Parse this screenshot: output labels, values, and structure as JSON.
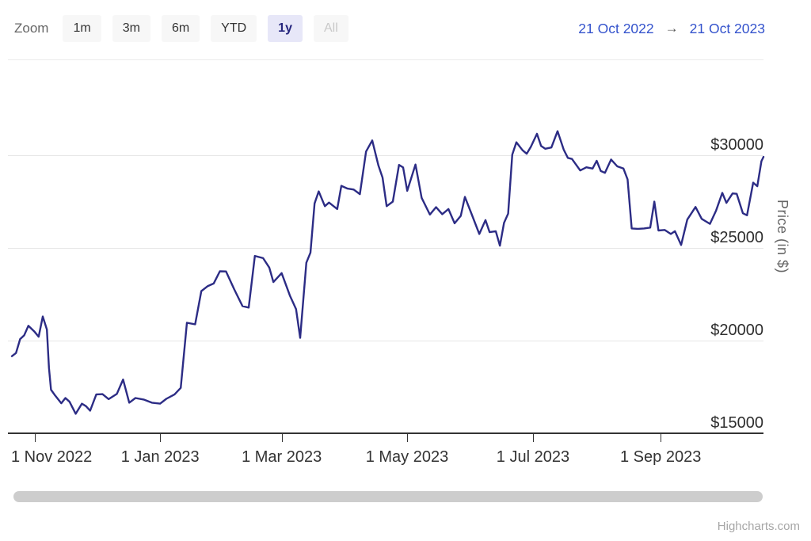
{
  "toolbar": {
    "zoom_label": "Zoom",
    "buttons": [
      {
        "label": "1m",
        "state": "normal"
      },
      {
        "label": "3m",
        "state": "normal"
      },
      {
        "label": "6m",
        "state": "normal"
      },
      {
        "label": "YTD",
        "state": "normal"
      },
      {
        "label": "1y",
        "state": "selected"
      },
      {
        "label": "All",
        "state": "disabled"
      }
    ],
    "range": {
      "from": "21 Oct 2022",
      "arrow": "→",
      "to": "21 Oct 2023"
    }
  },
  "credit": "Highcharts.com",
  "colors": {
    "line": "#2c2c85",
    "grid": "#e6e6e6",
    "top_border": "#ececec",
    "axis": "#333333",
    "selected_button_bg": "#e7e7f8",
    "button_bg": "#f7f7f7",
    "range_text": "#3352cc",
    "scrollbar": "#cdcdcd"
  },
  "chart_data": {
    "type": "line",
    "title": "",
    "xlabel": "",
    "ylabel": "Price (in $)",
    "legend": false,
    "grid": "horizontal",
    "yAxis": {
      "position": "right",
      "min": 15000,
      "max": 35000,
      "ticks": [
        15000,
        20000,
        25000,
        30000
      ],
      "labels": [
        "$15000",
        "$20000",
        "$25000",
        "$30000"
      ]
    },
    "xAxis": {
      "min": "2022-10-21",
      "max": "2023-10-21",
      "ticks": [
        "2022-11-01",
        "2023-01-01",
        "2023-03-01",
        "2023-05-01",
        "2023-07-01",
        "2023-09-01"
      ],
      "labels": [
        "1 Nov 2022",
        "1 Jan 2023",
        "1 Mar 2023",
        "1 May 2023",
        "1 Jul 2023",
        "1 Sep 2023"
      ]
    },
    "series": [
      {
        "name": "Price",
        "color": "#2c2c85",
        "points": [
          [
            "2022-10-21",
            19160
          ],
          [
            "2022-10-23",
            19330
          ],
          [
            "2022-10-25",
            20080
          ],
          [
            "2022-10-27",
            20290
          ],
          [
            "2022-10-29",
            20800
          ],
          [
            "2022-11-01",
            20480
          ],
          [
            "2022-11-03",
            20210
          ],
          [
            "2022-11-05",
            21300
          ],
          [
            "2022-11-07",
            20600
          ],
          [
            "2022-11-08",
            18540
          ],
          [
            "2022-11-09",
            17350
          ],
          [
            "2022-11-11",
            17040
          ],
          [
            "2022-11-14",
            16620
          ],
          [
            "2022-11-16",
            16900
          ],
          [
            "2022-11-18",
            16700
          ],
          [
            "2022-11-21",
            16050
          ],
          [
            "2022-11-24",
            16600
          ],
          [
            "2022-11-26",
            16460
          ],
          [
            "2022-11-28",
            16220
          ],
          [
            "2022-12-01",
            17100
          ],
          [
            "2022-12-04",
            17110
          ],
          [
            "2022-12-07",
            16840
          ],
          [
            "2022-12-11",
            17130
          ],
          [
            "2022-12-14",
            17900
          ],
          [
            "2022-12-17",
            16650
          ],
          [
            "2022-12-20",
            16900
          ],
          [
            "2022-12-24",
            16820
          ],
          [
            "2022-12-28",
            16650
          ],
          [
            "2023-01-01",
            16600
          ],
          [
            "2023-01-04",
            16860
          ],
          [
            "2023-01-08",
            17100
          ],
          [
            "2023-01-11",
            17450
          ],
          [
            "2023-01-14",
            20960
          ],
          [
            "2023-01-18",
            20880
          ],
          [
            "2023-01-21",
            22670
          ],
          [
            "2023-01-24",
            22930
          ],
          [
            "2023-01-27",
            23080
          ],
          [
            "2023-01-30",
            23740
          ],
          [
            "2023-02-02",
            23730
          ],
          [
            "2023-02-06",
            22760
          ],
          [
            "2023-02-10",
            21860
          ],
          [
            "2023-02-13",
            21780
          ],
          [
            "2023-02-16",
            24570
          ],
          [
            "2023-02-20",
            24450
          ],
          [
            "2023-02-23",
            23940
          ],
          [
            "2023-02-25",
            23160
          ],
          [
            "2023-03-01",
            23640
          ],
          [
            "2023-03-05",
            22430
          ],
          [
            "2023-03-08",
            21700
          ],
          [
            "2023-03-10",
            20150
          ],
          [
            "2023-03-13",
            24200
          ],
          [
            "2023-03-15",
            24750
          ],
          [
            "2023-03-17",
            27400
          ],
          [
            "2023-03-19",
            28050
          ],
          [
            "2023-03-22",
            27250
          ],
          [
            "2023-03-24",
            27450
          ],
          [
            "2023-03-28",
            27100
          ],
          [
            "2023-03-30",
            28350
          ],
          [
            "2023-04-02",
            28200
          ],
          [
            "2023-04-05",
            28150
          ],
          [
            "2023-04-08",
            27900
          ],
          [
            "2023-04-11",
            30200
          ],
          [
            "2023-04-14",
            30800
          ],
          [
            "2023-04-17",
            29450
          ],
          [
            "2023-04-19",
            28800
          ],
          [
            "2023-04-21",
            27250
          ],
          [
            "2023-04-24",
            27500
          ],
          [
            "2023-04-27",
            29480
          ],
          [
            "2023-04-29",
            29340
          ],
          [
            "2023-05-01",
            28080
          ],
          [
            "2023-05-05",
            29500
          ],
          [
            "2023-05-08",
            27700
          ],
          [
            "2023-05-12",
            26800
          ],
          [
            "2023-05-15",
            27200
          ],
          [
            "2023-05-18",
            26820
          ],
          [
            "2023-05-21",
            27100
          ],
          [
            "2023-05-24",
            26330
          ],
          [
            "2023-05-27",
            26730
          ],
          [
            "2023-05-29",
            27750
          ],
          [
            "2023-06-01",
            26900
          ],
          [
            "2023-06-05",
            25750
          ],
          [
            "2023-06-08",
            26500
          ],
          [
            "2023-06-10",
            25850
          ],
          [
            "2023-06-13",
            25900
          ],
          [
            "2023-06-15",
            25120
          ],
          [
            "2023-06-17",
            26350
          ],
          [
            "2023-06-19",
            26850
          ],
          [
            "2023-06-21",
            30030
          ],
          [
            "2023-06-23",
            30700
          ],
          [
            "2023-06-26",
            30270
          ],
          [
            "2023-06-28",
            30080
          ],
          [
            "2023-06-30",
            30450
          ],
          [
            "2023-07-03",
            31160
          ],
          [
            "2023-07-05",
            30500
          ],
          [
            "2023-07-07",
            30350
          ],
          [
            "2023-07-10",
            30420
          ],
          [
            "2023-07-13",
            31300
          ],
          [
            "2023-07-16",
            30300
          ],
          [
            "2023-07-18",
            29860
          ],
          [
            "2023-07-20",
            29800
          ],
          [
            "2023-07-24",
            29180
          ],
          [
            "2023-07-27",
            29350
          ],
          [
            "2023-07-30",
            29280
          ],
          [
            "2023-08-01",
            29700
          ],
          [
            "2023-08-03",
            29150
          ],
          [
            "2023-08-05",
            29050
          ],
          [
            "2023-08-08",
            29770
          ],
          [
            "2023-08-11",
            29400
          ],
          [
            "2023-08-14",
            29280
          ],
          [
            "2023-08-16",
            28700
          ],
          [
            "2023-08-18",
            26050
          ],
          [
            "2023-08-21",
            26030
          ],
          [
            "2023-08-24",
            26050
          ],
          [
            "2023-08-27",
            26100
          ],
          [
            "2023-08-29",
            27500
          ],
          [
            "2023-08-31",
            25940
          ],
          [
            "2023-09-03",
            25970
          ],
          [
            "2023-09-06",
            25750
          ],
          [
            "2023-09-08",
            25900
          ],
          [
            "2023-09-11",
            25160
          ],
          [
            "2023-09-14",
            26530
          ],
          [
            "2023-09-18",
            27210
          ],
          [
            "2023-09-21",
            26570
          ],
          [
            "2023-09-25",
            26300
          ],
          [
            "2023-09-28",
            27020
          ],
          [
            "2023-10-01",
            27970
          ],
          [
            "2023-10-03",
            27430
          ],
          [
            "2023-10-06",
            27940
          ],
          [
            "2023-10-08",
            27920
          ],
          [
            "2023-10-11",
            26870
          ],
          [
            "2023-10-13",
            26760
          ],
          [
            "2023-10-16",
            28520
          ],
          [
            "2023-10-18",
            28330
          ],
          [
            "2023-10-20",
            29680
          ],
          [
            "2023-10-21",
            29910
          ]
        ]
      }
    ]
  }
}
